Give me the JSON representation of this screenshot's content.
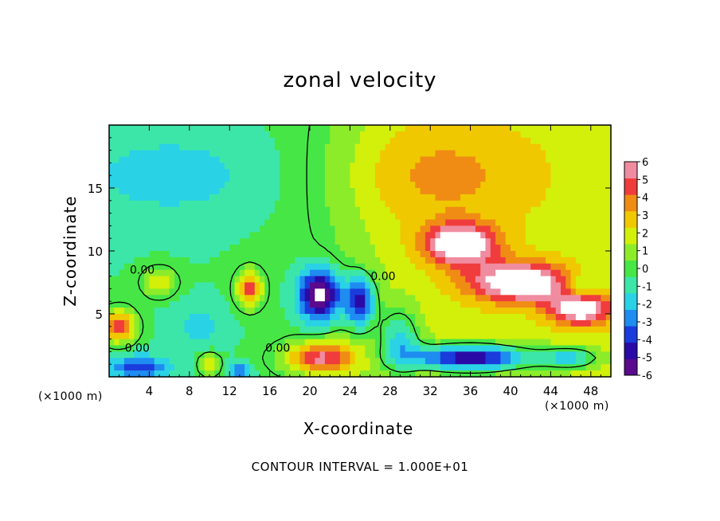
{
  "chart_data": {
    "type": "heatmap",
    "title": "zonal velocity",
    "xlabel": "X-coordinate",
    "ylabel": "Z-coordinate",
    "x_unit_label": "(×1000 m)",
    "footnote": "CONTOUR INTERVAL = 1.000E+01",
    "xlim": [
      0,
      50
    ],
    "ylim": [
      0,
      20
    ],
    "x_ticks": [
      4,
      8,
      12,
      16,
      20,
      24,
      28,
      32,
      36,
      40,
      44,
      48
    ],
    "y_ticks": [
      5,
      10,
      15
    ],
    "colorbar": {
      "min": -6,
      "max": 6,
      "ticks": [
        6,
        5,
        4,
        3,
        2,
        1,
        0,
        -1,
        -2,
        -3,
        -4,
        -5,
        -6
      ],
      "colors": [
        "#5a0a8c",
        "#2a0aa6",
        "#1a3cdc",
        "#1e8cf0",
        "#2ad2e6",
        "#3ce6a8",
        "#46e646",
        "#8cec2a",
        "#d2f00a",
        "#f0c800",
        "#f08c14",
        "#f03c3c",
        "#f08ca0"
      ]
    },
    "contour_labels": [
      {
        "text": "0.00",
        "x": 3.3,
        "z": 8.5
      },
      {
        "text": "0.00",
        "x": 27.3,
        "z": 8.0
      },
      {
        "text": "0.00",
        "x": 2.8,
        "z": 2.3
      },
      {
        "text": "0.00",
        "x": 16.8,
        "z": 2.3
      }
    ],
    "field_features": [
      {
        "x": 6,
        "z": 16,
        "v": -1.8,
        "sx": 8,
        "sz": 3
      },
      {
        "x": 33,
        "z": 16,
        "v": 1.8,
        "sx": 9,
        "sz": 4
      },
      {
        "x": 35,
        "z": 10.5,
        "v": 6.8,
        "sx": 3.5,
        "sz": 1.6
      },
      {
        "x": 41,
        "z": 7.5,
        "v": 6.8,
        "sx": 5,
        "sz": 1.5
      },
      {
        "x": 47,
        "z": 5.5,
        "v": 6.5,
        "sx": 3,
        "sz": 1.3
      },
      {
        "x": 21,
        "z": 6.5,
        "v": -7.5,
        "sx": 2,
        "sz": 2
      },
      {
        "x": 25,
        "z": 6,
        "v": -6,
        "sx": 1.5,
        "sz": 2
      },
      {
        "x": 14,
        "z": 7,
        "v": 6,
        "sx": 1.2,
        "sz": 1.3
      },
      {
        "x": 1,
        "z": 4,
        "v": 6,
        "sx": 1.5,
        "sz": 1.2
      },
      {
        "x": 21,
        "z": 1.5,
        "v": 6,
        "sx": 3.5,
        "sz": 1.2
      },
      {
        "x": 36,
        "z": 1.5,
        "v": -8,
        "sx": 6,
        "sz": 1
      },
      {
        "x": 47,
        "z": 7,
        "v": -3,
        "sx": 2,
        "sz": 1.2
      },
      {
        "x": 46,
        "z": 1.5,
        "v": -4,
        "sx": 3,
        "sz": 0.8
      },
      {
        "x": 29,
        "z": 3,
        "v": -3.5,
        "sx": 2,
        "sz": 2.5
      },
      {
        "x": 5,
        "z": 7.5,
        "v": 3.5,
        "sx": 1.5,
        "sz": 1
      },
      {
        "x": 3,
        "z": 0.8,
        "v": -4,
        "sx": 3,
        "sz": 0.8
      },
      {
        "x": 13,
        "z": 0.5,
        "v": -4,
        "sx": 1,
        "sz": 0.5
      },
      {
        "x": 10,
        "z": 1,
        "v": 3,
        "sx": 1,
        "sz": 0.8
      },
      {
        "x": 9,
        "z": 4,
        "v": -1.5,
        "sx": 2.5,
        "sz": 1.5
      }
    ]
  }
}
